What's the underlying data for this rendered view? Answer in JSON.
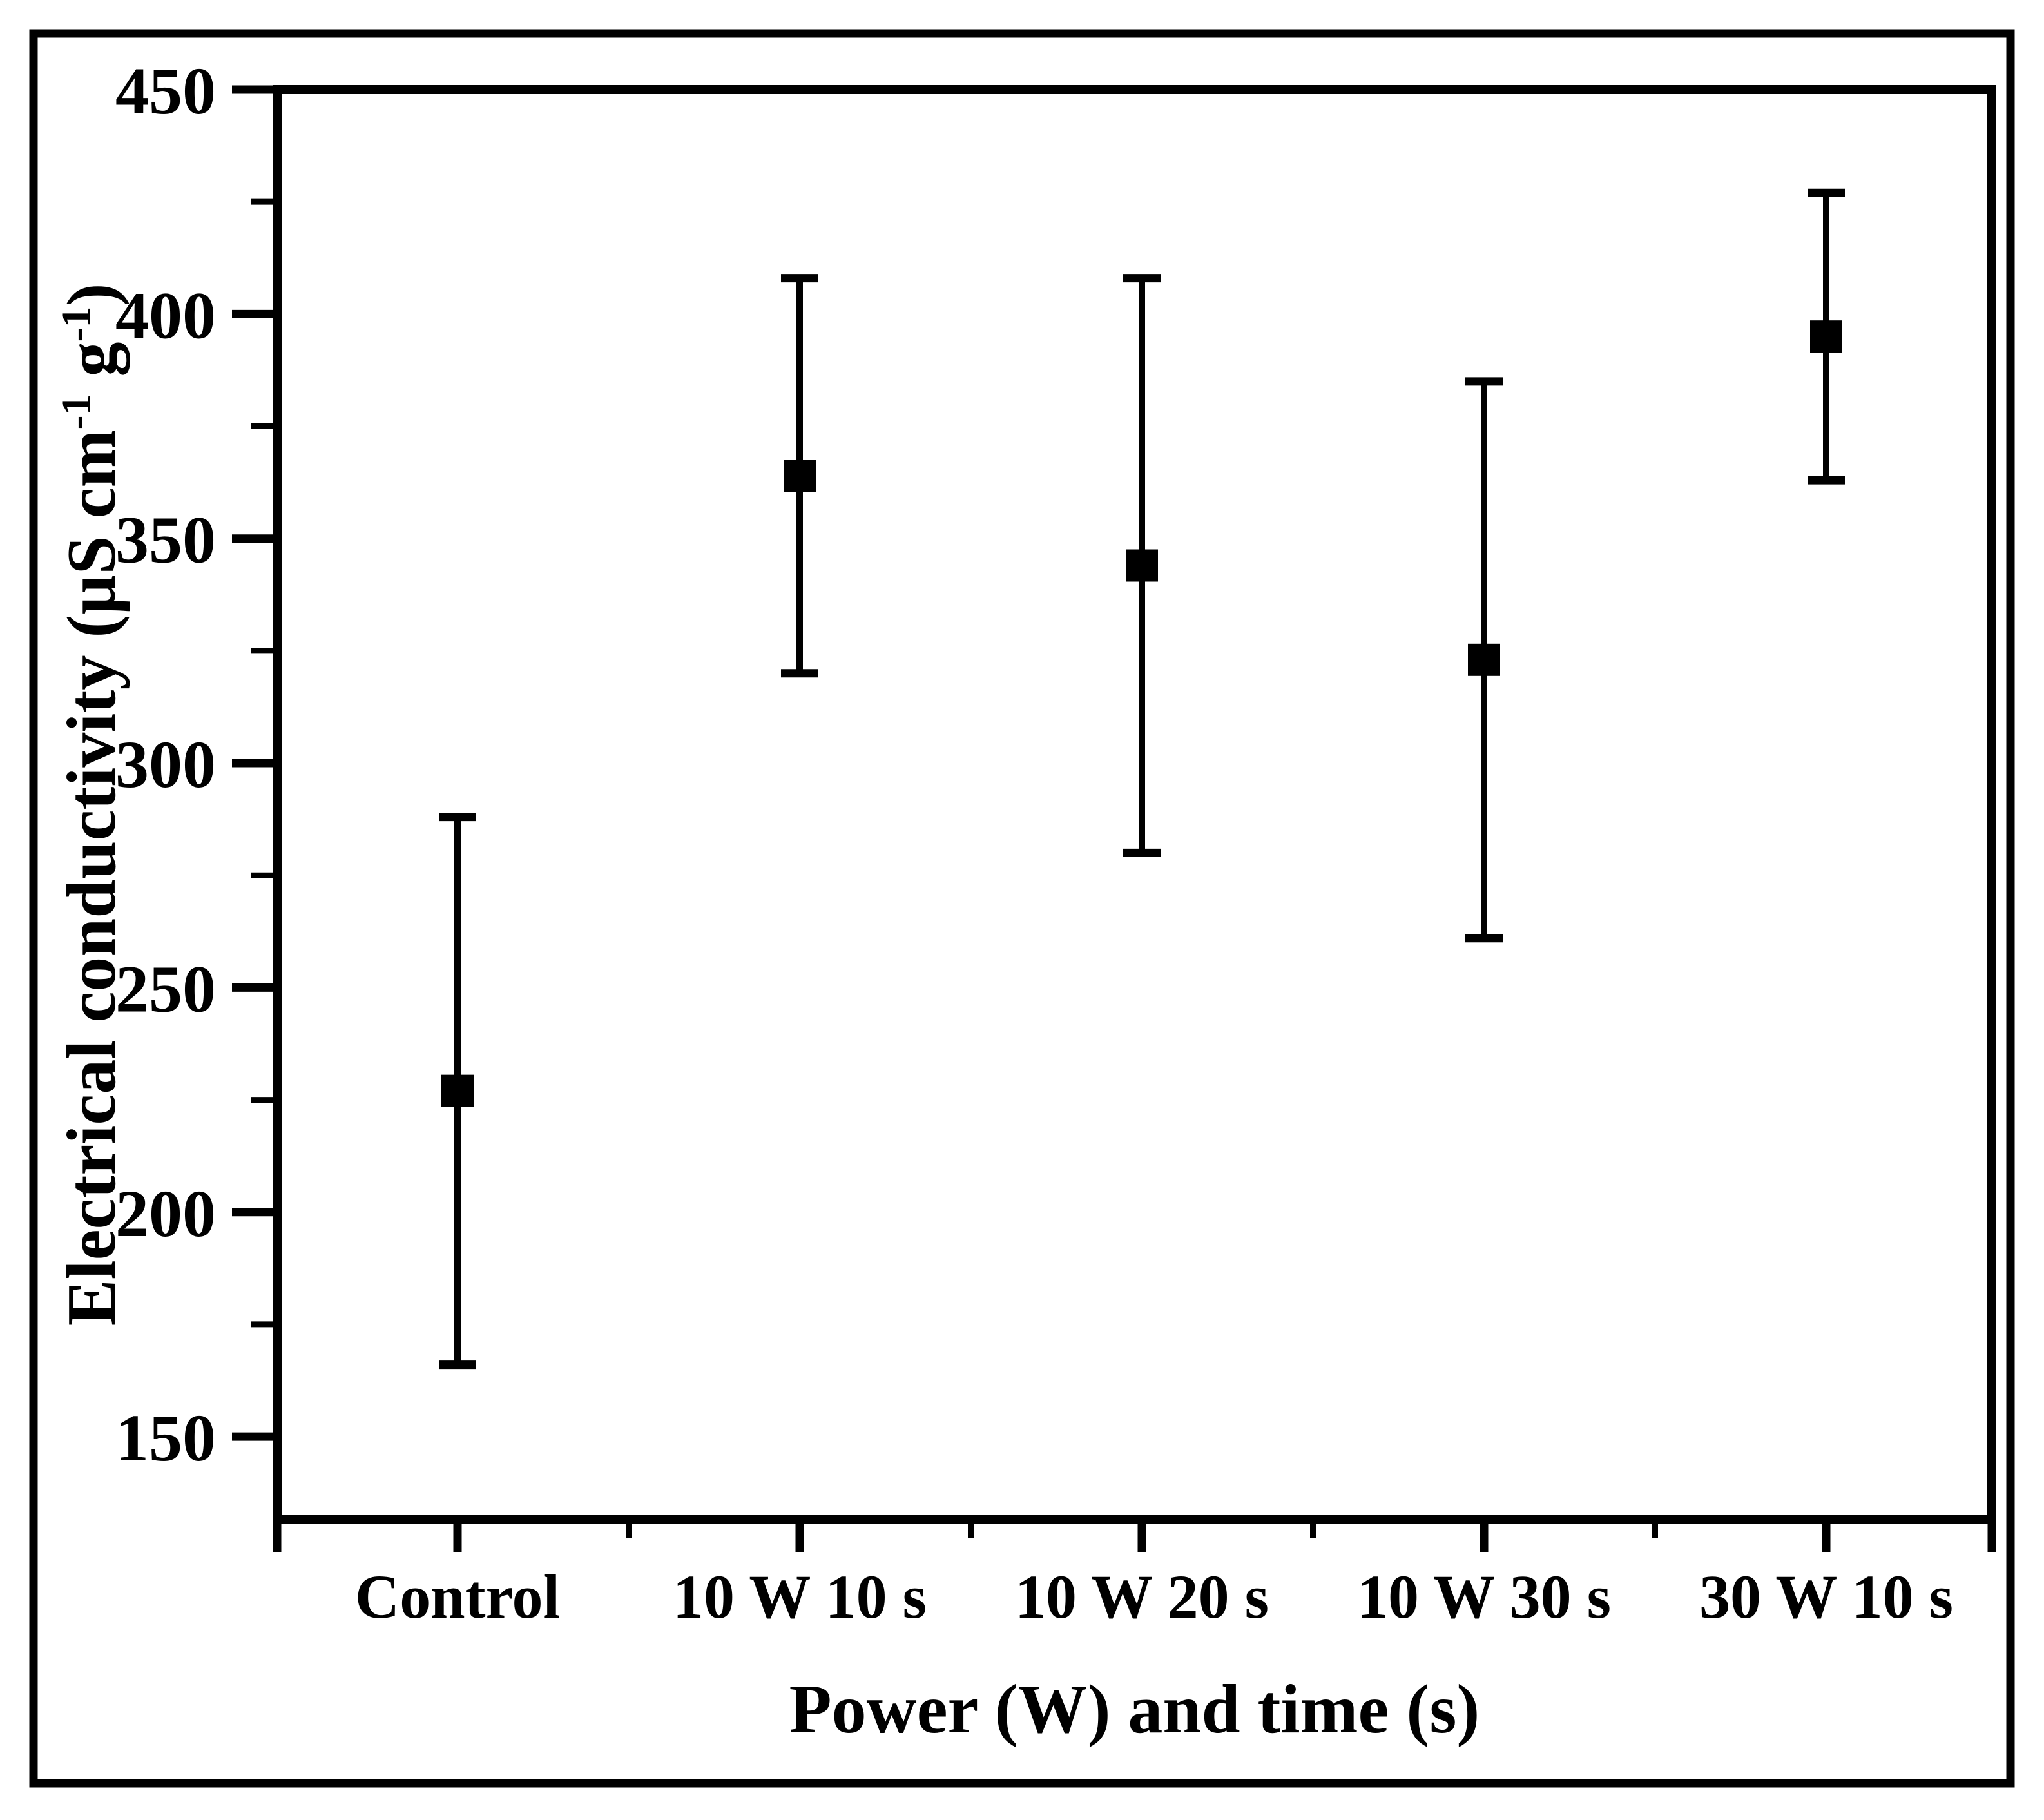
{
  "figure": {
    "background": "#ffffff",
    "frame_color": "#000000",
    "data_color": "#000000"
  },
  "chart_data": {
    "type": "scatter",
    "title": "",
    "xlabel": "Power (W) and time (s)",
    "ylabel": "Electrical conductivity (µS cm⁻¹ g⁻¹)",
    "ylabel_parts": [
      {
        "t": "Electrical conductivity (µS cm",
        "sup": false
      },
      {
        "t": "-1",
        "sup": true
      },
      {
        "t": " g",
        "sup": false
      },
      {
        "t": "-1",
        "sup": true
      },
      {
        "t": ")",
        "sup": false
      }
    ],
    "categories": [
      "Control",
      "10 W 10 s",
      "10 W 20 s",
      "10 W 30 s",
      "30 W 10 s"
    ],
    "series": [
      {
        "name": "Electrical conductivity",
        "marker": "square",
        "color": "#000000",
        "points": [
          {
            "category": "Control",
            "value": 227,
            "upper": 288,
            "lower": 166
          },
          {
            "category": "10 W 10 s",
            "value": 364,
            "upper": 408,
            "lower": 320
          },
          {
            "category": "10 W 20 s",
            "value": 344,
            "upper": 408,
            "lower": 280
          },
          {
            "category": "10 W 30 s",
            "value": 323,
            "upper": 385,
            "lower": 261
          },
          {
            "category": "30 W 10 s",
            "value": 395,
            "upper": 427,
            "lower": 363
          }
        ]
      }
    ],
    "error_bars": true,
    "ylim": [
      131.5,
      450
    ],
    "y_major_ticks": [
      450,
      400,
      350,
      300,
      250,
      200,
      150
    ],
    "y_minor_ticks": [
      425,
      375,
      325,
      275,
      225,
      175
    ],
    "grid": false,
    "legend": false
  }
}
